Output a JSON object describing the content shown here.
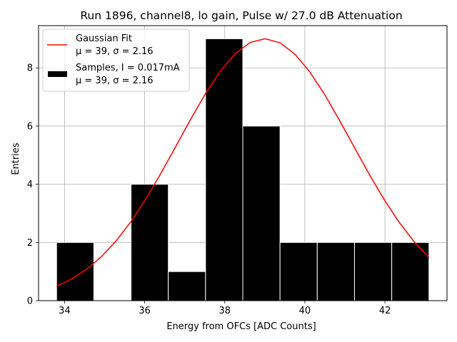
{
  "chart_data": {
    "type": "bar",
    "title": "Run 1896, channel8, lo gain, Pulse w/ 27.0 dB Attenuation",
    "xlabel": "Energy from OFCs [ADC Counts]",
    "ylabel": "Entries",
    "xlim": [
      33.35,
      43.55
    ],
    "ylim": [
      0,
      9.45
    ],
    "xticks": [
      34,
      36,
      38,
      40,
      42
    ],
    "yticks": [
      0,
      2,
      4,
      6,
      8
    ],
    "grid": true,
    "legend_position": "upper-left",
    "bins": [
      {
        "left": 33.8,
        "right": 34.73,
        "count": 2
      },
      {
        "left": 34.73,
        "right": 35.66,
        "count": 0
      },
      {
        "left": 35.66,
        "right": 36.59,
        "count": 4
      },
      {
        "left": 36.59,
        "right": 37.52,
        "count": 1
      },
      {
        "left": 37.52,
        "right": 38.45,
        "count": 9
      },
      {
        "left": 38.45,
        "right": 39.38,
        "count": 6
      },
      {
        "left": 39.38,
        "right": 40.31,
        "count": 2
      },
      {
        "left": 40.31,
        "right": 41.24,
        "count": 2
      },
      {
        "left": 41.24,
        "right": 42.17,
        "count": 2
      },
      {
        "left": 42.17,
        "right": 43.1,
        "count": 2
      }
    ],
    "fit": {
      "name": "Gaussian Fit",
      "mu": 39,
      "sigma": 2.16,
      "amplitude": 9.0,
      "x_range": [
        33.8,
        43.1
      ],
      "color": "#ff0000"
    },
    "legend": [
      {
        "kind": "line",
        "color": "#ff0000",
        "line1": "Gaussian Fit",
        "line2": "μ = 39, σ = 2.16"
      },
      {
        "kind": "patch",
        "color": "#000000",
        "line1": "Samples, I = 0.017mA",
        "line2": "μ = 39, σ = 2.16"
      }
    ]
  }
}
